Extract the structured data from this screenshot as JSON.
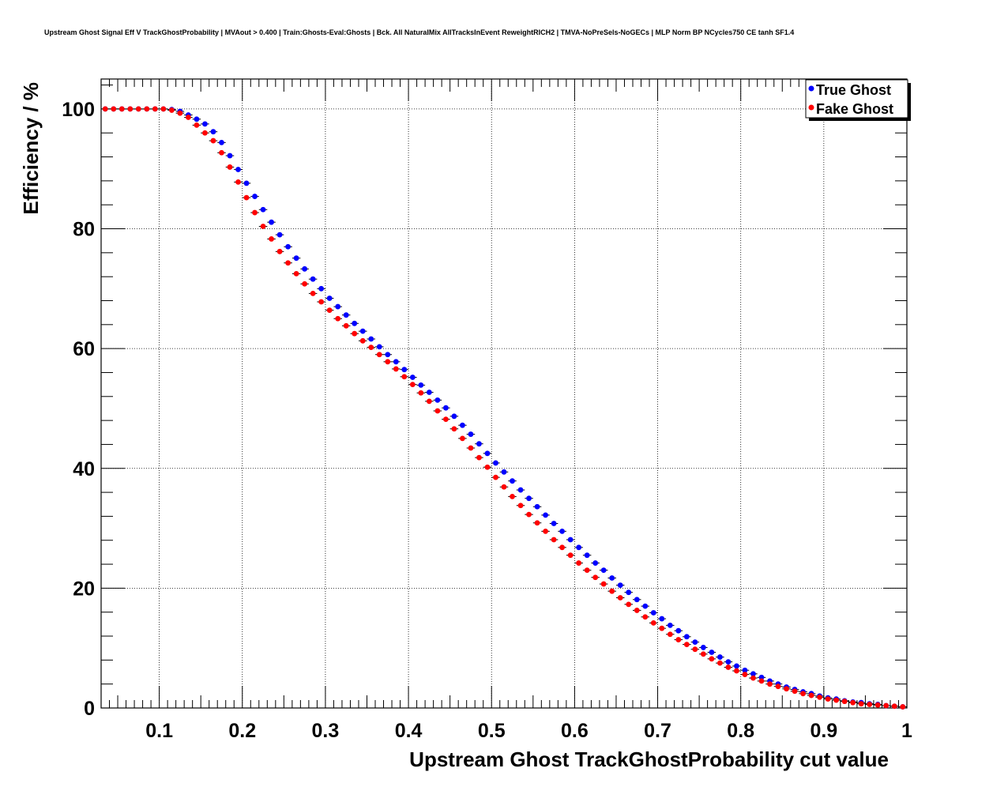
{
  "colors": {
    "true_ghost": "#0000ff",
    "fake_ghost": "#ff0000",
    "frame": "#000000",
    "grid": "#000000"
  },
  "chart_data": {
    "type": "scatter",
    "title": "Upstream Ghost Signal Eff V TrackGhostProbability | MVAout > 0.400 | Train:Ghosts-Eval:Ghosts | Bck. All NaturalMix AllTracksInEvent ReweightRICH2 | TMVA-NoPreSels-NoGECs | MLP Norm BP NCycles750 CE tanh SF1.4",
    "xlabel": "Upstream Ghost TrackGhostProbability cut value",
    "ylabel": "Efficiency / %",
    "xlim": [
      0.03,
      1.0
    ],
    "ylim": [
      0,
      105
    ],
    "grid": true,
    "legend_position": "top-right",
    "x_ticks": [
      {
        "value": 0.1,
        "label": "0.1"
      },
      {
        "value": 0.2,
        "label": "0.2"
      },
      {
        "value": 0.3,
        "label": "0.3"
      },
      {
        "value": 0.4,
        "label": "0.4"
      },
      {
        "value": 0.5,
        "label": "0.5"
      },
      {
        "value": 0.6,
        "label": "0.6"
      },
      {
        "value": 0.7,
        "label": "0.7"
      },
      {
        "value": 0.8,
        "label": "0.8"
      },
      {
        "value": 0.9,
        "label": "0.9"
      },
      {
        "value": 1.0,
        "label": "1"
      }
    ],
    "y_ticks": [
      {
        "value": 0,
        "label": "0"
      },
      {
        "value": 20,
        "label": "20"
      },
      {
        "value": 40,
        "label": "40"
      },
      {
        "value": 60,
        "label": "60"
      },
      {
        "value": 80,
        "label": "80"
      },
      {
        "value": 100,
        "label": "100"
      }
    ],
    "x": [
      0.035,
      0.045,
      0.055,
      0.065,
      0.075,
      0.085,
      0.095,
      0.105,
      0.115,
      0.125,
      0.135,
      0.145,
      0.155,
      0.165,
      0.175,
      0.185,
      0.195,
      0.205,
      0.215,
      0.225,
      0.235,
      0.245,
      0.255,
      0.265,
      0.275,
      0.285,
      0.295,
      0.305,
      0.315,
      0.325,
      0.335,
      0.345,
      0.355,
      0.365,
      0.375,
      0.385,
      0.395,
      0.405,
      0.415,
      0.425,
      0.435,
      0.445,
      0.455,
      0.465,
      0.475,
      0.485,
      0.495,
      0.505,
      0.515,
      0.525,
      0.535,
      0.545,
      0.555,
      0.565,
      0.575,
      0.585,
      0.595,
      0.605,
      0.615,
      0.625,
      0.635,
      0.645,
      0.655,
      0.665,
      0.675,
      0.685,
      0.695,
      0.705,
      0.715,
      0.725,
      0.735,
      0.745,
      0.755,
      0.765,
      0.775,
      0.785,
      0.795,
      0.805,
      0.815,
      0.825,
      0.835,
      0.845,
      0.855,
      0.865,
      0.875,
      0.885,
      0.895,
      0.905,
      0.915,
      0.925,
      0.935,
      0.945,
      0.955,
      0.965,
      0.975,
      0.985,
      0.995
    ],
    "series": [
      {
        "name": "True Ghost",
        "color": "#0000ff",
        "values": [
          100,
          100,
          100,
          100,
          100,
          100,
          100,
          100,
          99.9,
          99.6,
          99.0,
          98.3,
          97.5,
          96.2,
          94.4,
          92.2,
          89.9,
          87.6,
          85.4,
          83.2,
          81.1,
          79.0,
          77.0,
          75.1,
          73.3,
          71.6,
          70.0,
          68.4,
          67.0,
          65.6,
          64.2,
          62.9,
          61.6,
          60.3,
          59.0,
          57.8,
          56.5,
          55.2,
          53.9,
          52.7,
          51.4,
          50.1,
          48.7,
          47.2,
          45.7,
          44.1,
          42.5,
          40.9,
          39.4,
          37.9,
          36.4,
          35.0,
          33.6,
          32.2,
          30.8,
          29.5,
          28.1,
          26.8,
          25.5,
          24.2,
          23.0,
          21.7,
          20.5,
          19.3,
          18.1,
          17.0,
          15.9,
          14.9,
          13.8,
          12.9,
          11.9,
          11.0,
          10.1,
          9.3,
          8.5,
          7.7,
          7.0,
          6.3,
          5.7,
          5.1,
          4.5,
          4.0,
          3.5,
          3.1,
          2.7,
          2.4,
          2.0,
          1.7,
          1.5,
          1.2,
          1.0,
          0.9,
          0.7,
          0.6,
          0.4,
          0.3,
          0.2
        ]
      },
      {
        "name": "Fake Ghost",
        "color": "#ff0000",
        "values": [
          100,
          100,
          100,
          100,
          100,
          100,
          100,
          100,
          99.8,
          99.3,
          98.6,
          97.3,
          96.0,
          94.7,
          92.7,
          90.3,
          87.8,
          85.2,
          82.7,
          80.4,
          78.3,
          76.2,
          74.3,
          72.5,
          70.8,
          69.2,
          67.8,
          66.4,
          65.0,
          63.8,
          62.5,
          61.3,
          60.2,
          59.0,
          57.8,
          56.6,
          55.3,
          54.0,
          52.6,
          51.2,
          49.6,
          48.2,
          46.6,
          45.0,
          43.4,
          41.8,
          40.2,
          38.5,
          36.9,
          35.3,
          33.8,
          32.3,
          30.9,
          29.5,
          28.1,
          26.8,
          25.5,
          24.2,
          23.0,
          21.8,
          20.7,
          19.5,
          18.4,
          17.3,
          16.3,
          15.2,
          14.2,
          13.3,
          12.3,
          11.4,
          10.6,
          9.8,
          9.0,
          8.2,
          7.5,
          6.8,
          6.2,
          5.6,
          5.0,
          4.5,
          4.0,
          3.6,
          3.2,
          2.8,
          2.4,
          2.1,
          1.8,
          1.5,
          1.3,
          1.1,
          0.9,
          0.7,
          0.6,
          0.5,
          0.4,
          0.3,
          0.2
        ]
      }
    ]
  },
  "legend": {
    "entries": [
      "True Ghost",
      "Fake Ghost"
    ]
  }
}
